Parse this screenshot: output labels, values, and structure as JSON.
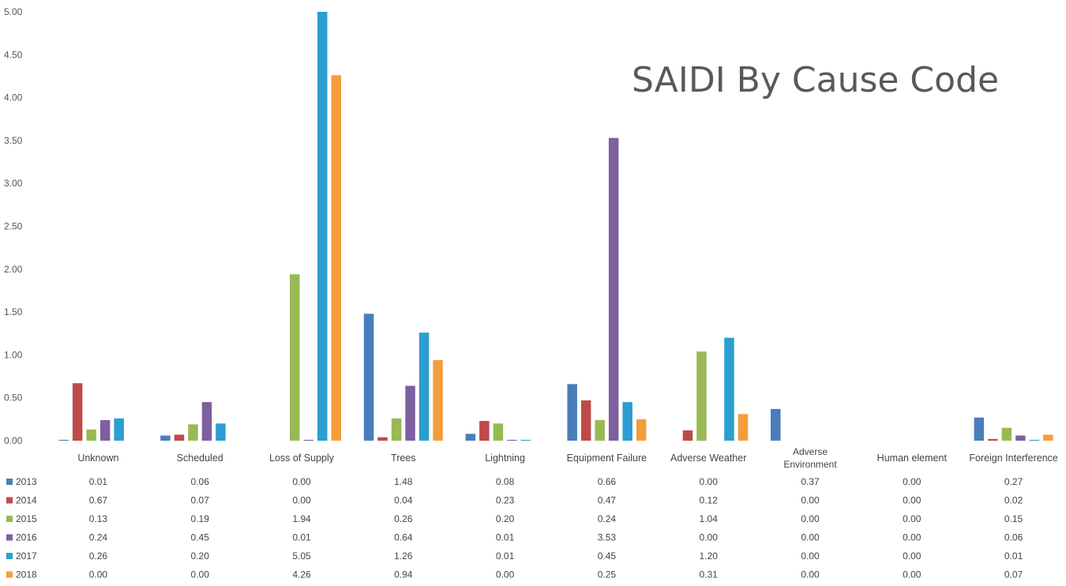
{
  "chart_data": {
    "type": "bar",
    "title": "SAIDI By Cause Code",
    "xlabel": "",
    "ylabel": "",
    "ylim": [
      0,
      5.0
    ],
    "y_ticks": [
      "0.00",
      "0.50",
      "1.00",
      "1.50",
      "2.00",
      "2.50",
      "3.00",
      "3.50",
      "4.00",
      "4.50",
      "5.00"
    ],
    "categories": [
      "Unknown",
      "Scheduled",
      "Loss of Supply",
      "Trees",
      "Lightning",
      "Equipment Failure",
      "Adverse Weather",
      "Adverse Environment",
      "Human element",
      "Foreign Interference"
    ],
    "series": [
      {
        "name": "2013",
        "color": "#4a7ebb",
        "values": [
          0.01,
          0.06,
          0.0,
          1.48,
          0.08,
          0.66,
          0.0,
          0.37,
          0.0,
          0.27
        ],
        "labels": [
          "0.01",
          "0.06",
          "0.00",
          "1.48",
          "0.08",
          "0.66",
          "0.00",
          "0.37",
          "0.00",
          "0.27"
        ]
      },
      {
        "name": "2014",
        "color": "#be4b48",
        "values": [
          0.67,
          0.07,
          0.0,
          0.04,
          0.23,
          0.47,
          0.12,
          0.0,
          0.0,
          0.02
        ],
        "labels": [
          "0.67",
          "0.07",
          "0.00",
          "0.04",
          "0.23",
          "0.47",
          "0.12",
          "0.00",
          "0.00",
          "0.02"
        ]
      },
      {
        "name": "2015",
        "color": "#98b954",
        "values": [
          0.13,
          0.19,
          1.94,
          0.26,
          0.2,
          0.24,
          1.04,
          0.0,
          0.0,
          0.15
        ],
        "labels": [
          "0.13",
          "0.19",
          "1.94",
          "0.26",
          "0.20",
          "0.24",
          "1.04",
          "0.00",
          "0.00",
          "0.15"
        ]
      },
      {
        "name": "2016",
        "color": "#7d60a0",
        "values": [
          0.24,
          0.45,
          0.01,
          0.64,
          0.01,
          3.53,
          0.0,
          0.0,
          0.0,
          0.06
        ],
        "labels": [
          "0.24",
          "0.45",
          "0.01",
          "0.64",
          "0.01",
          "3.53",
          "0.00",
          "0.00",
          "0.00",
          "0.06"
        ]
      },
      {
        "name": "2017",
        "color": "#2c9ed1",
        "values": [
          0.26,
          0.2,
          5.05,
          1.26,
          0.01,
          0.45,
          1.2,
          0.0,
          0.0,
          0.01
        ],
        "labels": [
          "0.26",
          "0.20",
          "5.05",
          "1.26",
          "0.01",
          "0.45",
          "1.20",
          "0.00",
          "0.00",
          "0.01"
        ]
      },
      {
        "name": "2018",
        "color": "#f59d3d",
        "values": [
          0.0,
          0.0,
          4.26,
          0.94,
          0.0,
          0.25,
          0.31,
          0.0,
          0.0,
          0.07
        ],
        "labels": [
          "0.00",
          "0.00",
          "4.26",
          "0.94",
          "0.00",
          "0.25",
          "0.31",
          "0.00",
          "0.00",
          "0.07"
        ]
      }
    ],
    "grid": false,
    "legend": "data-table-left"
  }
}
